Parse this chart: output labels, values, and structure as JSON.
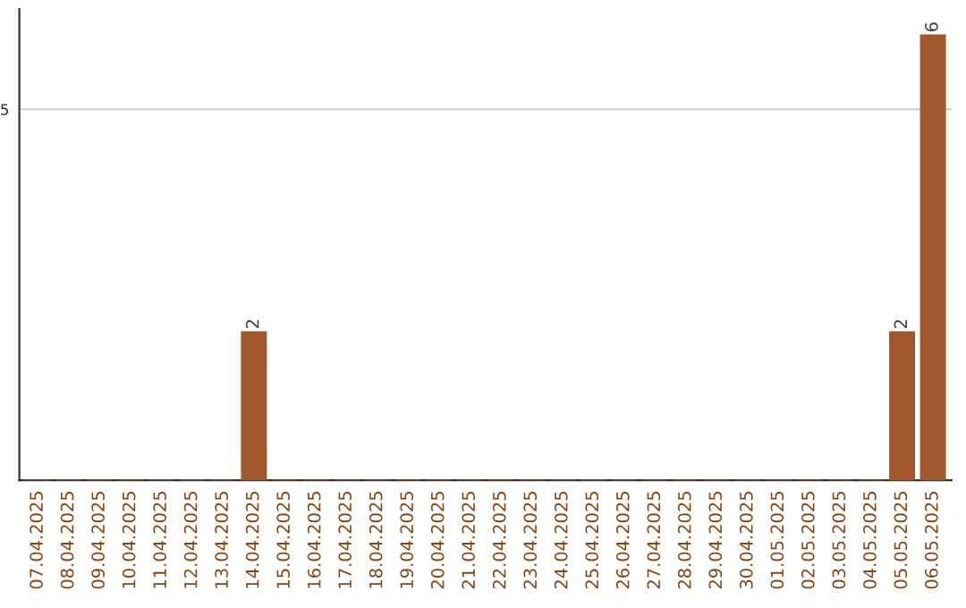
{
  "chart_data": {
    "type": "bar",
    "categories": [
      "07.04.2025",
      "08.04.2025",
      "09.04.2025",
      "10.04.2025",
      "11.04.2025",
      "12.04.2025",
      "13.04.2025",
      "14.04.2025",
      "15.04.2025",
      "16.04.2025",
      "17.04.2025",
      "18.04.2025",
      "19.04.2025",
      "20.04.2025",
      "21.04.2025",
      "22.04.2025",
      "23.04.2025",
      "24.04.2025",
      "25.04.2025",
      "26.04.2025",
      "27.04.2025",
      "28.04.2025",
      "29.04.2025",
      "30.04.2025",
      "01.05.2025",
      "02.05.2025",
      "03.05.2025",
      "04.05.2025",
      "05.05.2025",
      "06.05.2025"
    ],
    "values": [
      0,
      0,
      0,
      0,
      0,
      0,
      0,
      2,
      0,
      0,
      0,
      0,
      0,
      0,
      0,
      0,
      0,
      0,
      0,
      0,
      0,
      0,
      0,
      0,
      0,
      0,
      0,
      0,
      2,
      6
    ],
    "color": "#a0572c",
    "value_labels": [
      null,
      null,
      null,
      null,
      null,
      null,
      null,
      "2",
      null,
      null,
      null,
      null,
      null,
      null,
      null,
      null,
      null,
      null,
      null,
      null,
      null,
      null,
      null,
      null,
      null,
      null,
      null,
      null,
      "2",
      "6"
    ],
    "ylim": [
      0,
      6.35
    ],
    "yticks": [
      5
    ],
    "grid": "y"
  }
}
